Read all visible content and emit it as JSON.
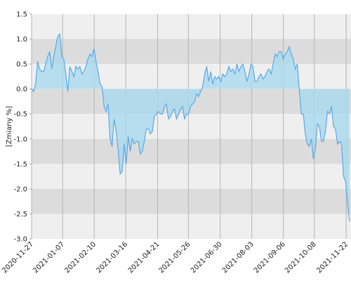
{
  "chart_data": {
    "type": "area",
    "y_label": "[Zmiany %]",
    "color": "#5aa9e6",
    "fill": "#a9d9ef",
    "band_colors": [
      "#efefef",
      "#dcdcdc"
    ],
    "grid": true,
    "xlim": [
      0,
      158
    ],
    "xticks": [
      {
        "value": 0,
        "label": "2020-11-27"
      },
      {
        "value": 15.4,
        "label": "2021-01-07"
      },
      {
        "value": 31.1,
        "label": "2021-02-10"
      },
      {
        "value": 46.8,
        "label": "2021-03-16"
      },
      {
        "value": 62.6,
        "label": "2021-04-21"
      },
      {
        "value": 77.9,
        "label": "2021-05-26"
      },
      {
        "value": 93.7,
        "label": "2021-06-30"
      },
      {
        "value": 109.4,
        "label": "2021-08-03"
      },
      {
        "value": 125.1,
        "label": "2021-09-06"
      },
      {
        "value": 140.5,
        "label": "2021-10-08"
      },
      {
        "value": 156.3,
        "label": "2021-11-22"
      }
    ],
    "ylim": [
      -3.0,
      1.5
    ],
    "yticks": [
      1.5,
      {
        "value": 1.0,
        "label": "1.0"
      },
      0.5,
      {
        "value": 0.0,
        "label": "0.0"
      },
      -0.5,
      {
        "value": -1.0,
        "label": "-1.0"
      },
      -1.5,
      {
        "value": -2.0,
        "label": "-2.0"
      },
      -2.5,
      {
        "value": -3.0,
        "label": "-3.0"
      }
    ],
    "values": [
      0.0,
      -0.05,
      0.1,
      0.55,
      0.4,
      0.35,
      0.35,
      0.5,
      0.65,
      0.75,
      0.4,
      0.65,
      0.85,
      1.05,
      1.1,
      0.65,
      0.6,
      0.3,
      -0.05,
      0.45,
      0.35,
      0.25,
      0.45,
      0.4,
      0.45,
      0.3,
      0.35,
      0.45,
      0.6,
      0.7,
      0.65,
      0.8,
      0.55,
      0.35,
      0.1,
      0.05,
      -0.35,
      -0.45,
      -0.3,
      -1.0,
      -1.15,
      -0.6,
      -0.85,
      -1.2,
      -1.7,
      -1.65,
      -1.1,
      -1.5,
      -0.95,
      -1.25,
      -1.0,
      -1.1,
      -1.05,
      -1.05,
      -1.3,
      -1.25,
      -1.05,
      -0.8,
      -0.8,
      -0.9,
      -0.85,
      -0.55,
      -0.5,
      -0.45,
      -0.5,
      -0.5,
      -0.35,
      -0.3,
      -0.6,
      -0.55,
      -0.45,
      -0.4,
      -0.6,
      -0.5,
      -0.4,
      -0.35,
      -0.6,
      -0.5,
      -0.5,
      -0.35,
      -0.3,
      -0.25,
      -0.1,
      -0.15,
      -0.05,
      0.05,
      0.3,
      0.45,
      0.15,
      0.35,
      0.1,
      0.25,
      0.2,
      0.25,
      0.15,
      0.3,
      0.25,
      0.3,
      0.45,
      0.35,
      0.4,
      0.3,
      0.5,
      0.35,
      0.45,
      0.5,
      0.35,
      0.15,
      0.3,
      0.5,
      0.45,
      0.15,
      0.15,
      0.25,
      0.3,
      0.2,
      0.25,
      0.35,
      0.4,
      0.3,
      0.5,
      0.7,
      0.65,
      0.75,
      0.75,
      0.6,
      0.7,
      0.75,
      0.85,
      0.7,
      0.6,
      0.4,
      0.5,
      0.0,
      -0.5,
      -0.5,
      -0.9,
      -1.1,
      -1.15,
      -1.0,
      -1.4,
      -1.2,
      -0.7,
      -0.75,
      -1.05,
      -1.05,
      -0.85,
      -0.45,
      -0.5,
      -0.35,
      -0.75,
      -0.8,
      -1.1,
      -1.05,
      -1.1,
      -1.75,
      -1.85,
      -2.3,
      -2.65
    ]
  }
}
